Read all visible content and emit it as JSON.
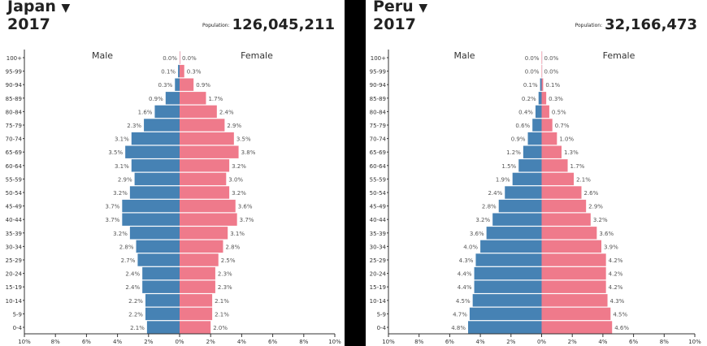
{
  "chart_data": [
    {
      "type": "bar",
      "orientation": "horizontal-pyramid",
      "country": "Japan",
      "dropdown_icon": "triangle-down-icon",
      "year": "2017",
      "population_label": "Population:",
      "population": "126,045,211",
      "series": [
        {
          "name": "Male",
          "color": "#4682b4"
        },
        {
          "name": "Female",
          "color": "#ef7a8b"
        }
      ],
      "categories": [
        "100+",
        "95-99",
        "90-94",
        "85-89",
        "80-84",
        "75-79",
        "70-74",
        "65-69",
        "60-64",
        "55-59",
        "50-54",
        "45-49",
        "40-44",
        "35-39",
        "30-34",
        "25-29",
        "20-24",
        "15-19",
        "10-14",
        "5-9",
        "0-4"
      ],
      "male": [
        0.0,
        0.1,
        0.3,
        0.9,
        1.6,
        2.3,
        3.1,
        3.5,
        3.1,
        2.9,
        3.2,
        3.7,
        3.7,
        3.2,
        2.8,
        2.7,
        2.4,
        2.4,
        2.2,
        2.2,
        2.1
      ],
      "female": [
        0.0,
        0.3,
        0.9,
        1.7,
        2.4,
        2.9,
        3.5,
        3.8,
        3.2,
        3.0,
        3.2,
        3.6,
        3.7,
        3.1,
        2.8,
        2.5,
        2.3,
        2.3,
        2.1,
        2.1,
        2.0
      ],
      "xticks": [
        "10%",
        "8%",
        "6%",
        "4%",
        "2%",
        "0%",
        "2%",
        "4%",
        "6%",
        "8%",
        "10%"
      ],
      "xlim": [
        -10,
        10
      ]
    },
    {
      "type": "bar",
      "orientation": "horizontal-pyramid",
      "country": "Peru",
      "dropdown_icon": "triangle-down-icon",
      "year": "2017",
      "population_label": "Population:",
      "population": "32,166,473",
      "series": [
        {
          "name": "Male",
          "color": "#4682b4"
        },
        {
          "name": "Female",
          "color": "#ef7a8b"
        }
      ],
      "categories": [
        "100+",
        "95-99",
        "90-94",
        "85-89",
        "80-84",
        "75-79",
        "70-74",
        "65-69",
        "60-64",
        "55-59",
        "50-54",
        "45-49",
        "40-44",
        "35-39",
        "30-34",
        "25-29",
        "20-24",
        "15-19",
        "10-14",
        "5-9",
        "0-4"
      ],
      "male": [
        0.0,
        0.0,
        0.1,
        0.2,
        0.4,
        0.6,
        0.9,
        1.2,
        1.5,
        1.9,
        2.4,
        2.8,
        3.2,
        3.6,
        4.0,
        4.3,
        4.4,
        4.4,
        4.5,
        4.7,
        4.8
      ],
      "female": [
        0.0,
        0.0,
        0.1,
        0.3,
        0.5,
        0.7,
        1.0,
        1.3,
        1.7,
        2.1,
        2.6,
        2.9,
        3.2,
        3.6,
        3.9,
        4.2,
        4.2,
        4.2,
        4.3,
        4.5,
        4.6
      ],
      "xticks": [
        "10%",
        "8%",
        "6%",
        "4%",
        "2%",
        "0%",
        "2%",
        "4%",
        "6%",
        "8%",
        "10%"
      ],
      "xlim": [
        -10,
        10
      ]
    }
  ]
}
